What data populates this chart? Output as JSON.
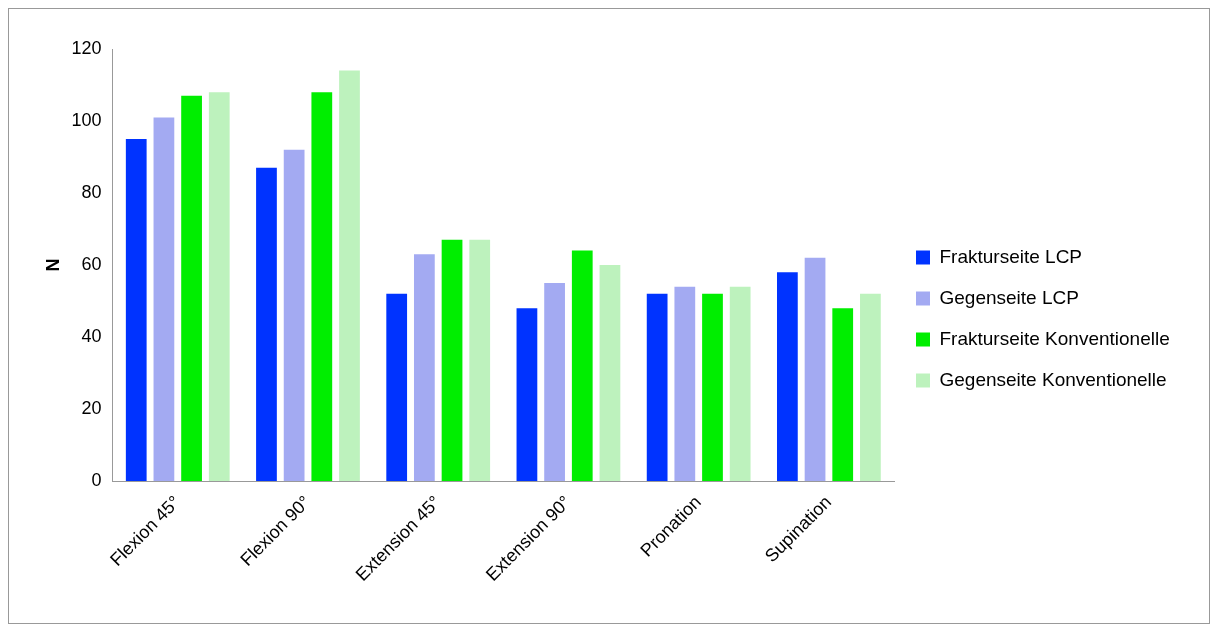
{
  "chart_data": {
    "type": "bar",
    "ylabel": "N",
    "categories": [
      "Flexion 45°",
      "Flexion 90°",
      "Extension 45°",
      "Extension 90°",
      "Pronation",
      "Supination"
    ],
    "series": [
      {
        "name": "Frakturseite LCP",
        "color": "#0033ff",
        "values": [
          95,
          87,
          52,
          48,
          52,
          58
        ]
      },
      {
        "name": "Gegenseite LCP",
        "color": "#a3aaf2",
        "values": [
          101,
          92,
          63,
          55,
          54,
          62
        ]
      },
      {
        "name": "Frakturseite Konventionelle",
        "color": "#00ee00",
        "values": [
          107,
          108,
          67,
          64,
          52,
          48
        ]
      },
      {
        "name": "Gegenseite Konventionelle",
        "color": "#bdf2bd",
        "values": [
          108,
          114,
          67,
          60,
          54,
          52
        ]
      }
    ],
    "ylim": [
      0,
      120
    ],
    "yticks": [
      0,
      20,
      40,
      60,
      80,
      100,
      120
    ],
    "grid": false,
    "legend": "right"
  }
}
